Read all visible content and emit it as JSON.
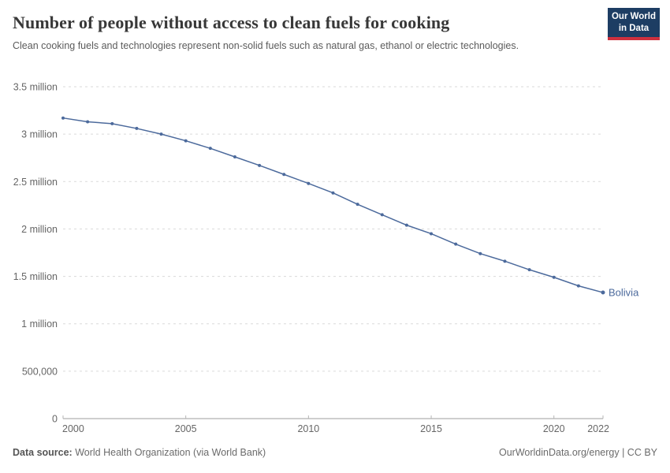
{
  "header": {
    "title": "Number of people without access to clean fuels for cooking",
    "subtitle": "Clean cooking fuels and technologies represent non-solid fuels such as natural gas, ethanol or electric technologies.",
    "logo": {
      "line1": "Our World",
      "line2": "in Data",
      "bg_color": "#1d3d63",
      "accent_color": "#cf303e"
    }
  },
  "chart_data": {
    "type": "line",
    "title": "Number of people without access to clean fuels for cooking",
    "xlabel": "",
    "ylabel": "",
    "xlim": [
      2000,
      2022
    ],
    "ylim": [
      0,
      3500000
    ],
    "grid": "horizontal-dashed",
    "legend_position": "end-of-line-label",
    "xticks": [
      2000,
      2005,
      2010,
      2015,
      2020,
      2022
    ],
    "yticks": [
      {
        "value": 0,
        "label": "0"
      },
      {
        "value": 500000,
        "label": "500,000"
      },
      {
        "value": 1000000,
        "label": "1 million"
      },
      {
        "value": 1500000,
        "label": "1.5 million"
      },
      {
        "value": 2000000,
        "label": "2 million"
      },
      {
        "value": 2500000,
        "label": "2.5 million"
      },
      {
        "value": 3000000,
        "label": "3 million"
      },
      {
        "value": 3500000,
        "label": "3.5 million"
      }
    ],
    "series": [
      {
        "name": "Bolivia",
        "color": "#4C6A9C",
        "x": [
          2000,
          2001,
          2002,
          2003,
          2004,
          2005,
          2006,
          2007,
          2008,
          2009,
          2010,
          2011,
          2012,
          2013,
          2014,
          2015,
          2016,
          2017,
          2018,
          2019,
          2020,
          2021,
          2022
        ],
        "values": [
          3170000,
          3130000,
          3110000,
          3060000,
          3000000,
          2930000,
          2850000,
          2760000,
          2670000,
          2575000,
          2480000,
          2380000,
          2260000,
          2150000,
          2040000,
          1950000,
          1840000,
          1740000,
          1660000,
          1570000,
          1490000,
          1400000,
          1330000
        ]
      }
    ],
    "end_label": "Bolivia"
  },
  "colors": {
    "grid": "#dadada",
    "axis": "#9e9e9e",
    "tick": "#b5b5b5",
    "tick_label": "#666666"
  },
  "footer": {
    "source_label": "Data source:",
    "source_text": " World Health Organization (via World Bank)",
    "credit": "OurWorldinData.org/energy | CC BY"
  }
}
